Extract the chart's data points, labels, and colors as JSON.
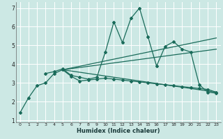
{
  "xlabel": "Humidex (Indice chaleur)",
  "ylabel": "",
  "bg_color": "#cce8e4",
  "grid_color": "#b0d8d4",
  "line_color": "#1a6b5a",
  "xlim": [
    -0.5,
    23.5
  ],
  "ylim": [
    0.9,
    7.3
  ],
  "xticks": [
    0,
    1,
    2,
    3,
    4,
    5,
    6,
    7,
    8,
    9,
    10,
    11,
    12,
    13,
    14,
    15,
    16,
    17,
    18,
    19,
    20,
    21,
    22,
    23
  ],
  "yticks": [
    1,
    2,
    3,
    4,
    5,
    6,
    7
  ],
  "line0_x": [
    0,
    1,
    2,
    3,
    4,
    5,
    6,
    7,
    8,
    9,
    10,
    11,
    12,
    13,
    14,
    15,
    16,
    17,
    18,
    19,
    20,
    21,
    22,
    23
  ],
  "line0_y": [
    1.4,
    2.2,
    2.85,
    3.0,
    3.5,
    3.7,
    3.35,
    3.1,
    3.15,
    3.2,
    3.25,
    3.2,
    3.15,
    3.1,
    3.05,
    3.0,
    2.95,
    2.9,
    2.85,
    2.8,
    2.75,
    2.7,
    2.65,
    2.5
  ],
  "line1_x": [
    3,
    4,
    5,
    6,
    7,
    8,
    9,
    10,
    11,
    12,
    13,
    14,
    15,
    16,
    17,
    18,
    19,
    20,
    21,
    22,
    23
  ],
  "line1_y": [
    3.5,
    3.6,
    3.75,
    3.4,
    3.3,
    3.2,
    3.3,
    4.65,
    6.25,
    5.15,
    6.45,
    7.0,
    5.45,
    3.9,
    4.95,
    5.2,
    4.8,
    4.65,
    2.9,
    2.5,
    2.45
  ],
  "trend1_x": [
    5,
    23
  ],
  "trend1_y": [
    3.7,
    5.4
  ],
  "trend2_x": [
    5,
    23
  ],
  "trend2_y": [
    3.7,
    2.5
  ],
  "trend3_x": [
    5,
    23
  ],
  "trend3_y": [
    3.7,
    4.8
  ]
}
